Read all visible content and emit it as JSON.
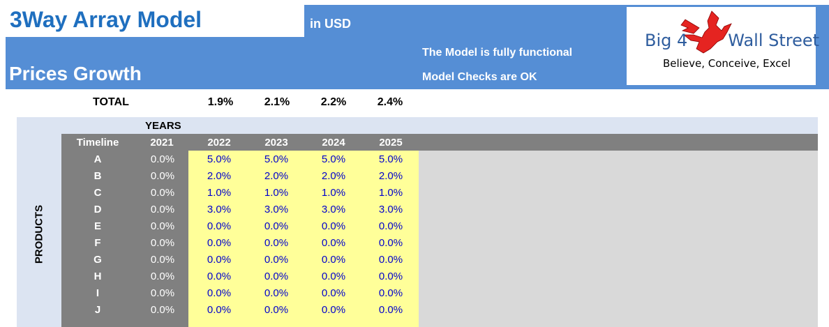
{
  "header": {
    "title": "3Way Array Model",
    "currency": "in USD",
    "subtitle": "Prices Growth",
    "status_functional": "The Model is fully functional",
    "status_checks": "Model Checks are OK"
  },
  "logo": {
    "name_left": "Big 4",
    "name_right": "Wall Street",
    "tagline": "Believe, Conceive, Excel",
    "icon": "eagle-icon",
    "colors": {
      "eagle": "#e52421",
      "text": "#2f5d9e"
    }
  },
  "totals": {
    "label": "TOTAL",
    "values": [
      "1.9%",
      "2.1%",
      "2.2%",
      "2.4%"
    ]
  },
  "grid": {
    "years_label": "YEARS",
    "axis_label": "PRODUCTS",
    "timeline_label": "Timeline",
    "years": [
      "2021",
      "2022",
      "2023",
      "2024",
      "2025"
    ],
    "rows": [
      {
        "product": "A",
        "values": [
          "0.0%",
          "5.0%",
          "5.0%",
          "5.0%",
          "5.0%"
        ]
      },
      {
        "product": "B",
        "values": [
          "0.0%",
          "2.0%",
          "2.0%",
          "2.0%",
          "2.0%"
        ]
      },
      {
        "product": "C",
        "values": [
          "0.0%",
          "1.0%",
          "1.0%",
          "1.0%",
          "1.0%"
        ]
      },
      {
        "product": "D",
        "values": [
          "0.0%",
          "3.0%",
          "3.0%",
          "3.0%",
          "3.0%"
        ]
      },
      {
        "product": "E",
        "values": [
          "0.0%",
          "0.0%",
          "0.0%",
          "0.0%",
          "0.0%"
        ]
      },
      {
        "product": "F",
        "values": [
          "0.0%",
          "0.0%",
          "0.0%",
          "0.0%",
          "0.0%"
        ]
      },
      {
        "product": "G",
        "values": [
          "0.0%",
          "0.0%",
          "0.0%",
          "0.0%",
          "0.0%"
        ]
      },
      {
        "product": "H",
        "values": [
          "0.0%",
          "0.0%",
          "0.0%",
          "0.0%",
          "0.0%"
        ]
      },
      {
        "product": "I",
        "values": [
          "0.0%",
          "0.0%",
          "0.0%",
          "0.0%",
          "0.0%"
        ]
      },
      {
        "product": "J",
        "values": [
          "0.0%",
          "0.0%",
          "0.0%",
          "0.0%",
          "0.0%"
        ]
      }
    ]
  },
  "colors": {
    "header_blue": "#558ed5",
    "title_blue": "#1f6fbf",
    "grid_header_gray": "#808080",
    "input_yellow": "#ffff99",
    "input_text": "#0000cc",
    "panel_lavender": "#dce4f2",
    "empty_gray": "#d9d9d9"
  }
}
